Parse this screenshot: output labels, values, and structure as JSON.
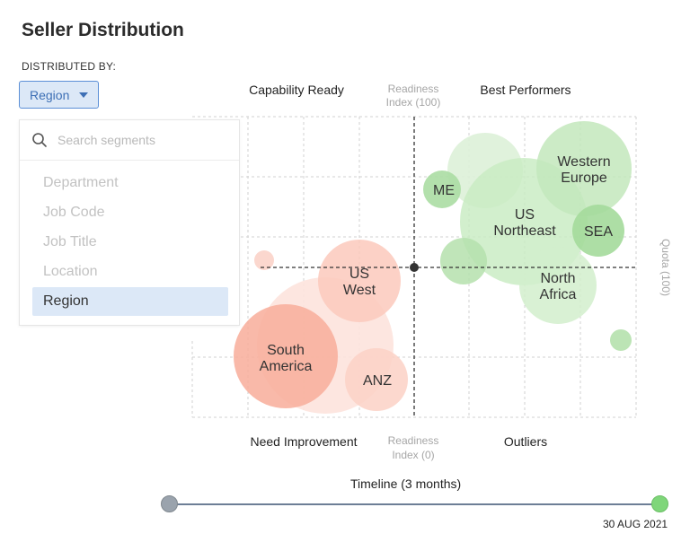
{
  "header": {
    "title": "Seller Distribution",
    "distributed_by_label": "DISTRIBUTED BY:"
  },
  "filter": {
    "selected": "Region",
    "search_placeholder": "Search segments",
    "options": [
      "Department",
      "Job Code",
      "Job Title",
      "Location",
      "Region"
    ],
    "selected_index": 4
  },
  "chart_data": {
    "type": "scatter",
    "quadrants": {
      "top_left": "Capability Ready",
      "top_right": "Best Performers",
      "bottom_left": "Need Improvement",
      "bottom_right": "Outliers"
    },
    "axis_labels": {
      "y_top": [
        "Readiness",
        "Index (100)"
      ],
      "y_bottom": [
        "Readiness",
        "Index (0)"
      ],
      "x_right": "Quota (100)"
    },
    "bubbles": [
      {
        "label": "ME",
        "group": "green"
      },
      {
        "label": "US Northeast",
        "group": "green"
      },
      {
        "label": "Western Europe",
        "group": "green"
      },
      {
        "label": "SEA",
        "group": "green"
      },
      {
        "label": "North Africa",
        "group": "green"
      },
      {
        "label": "US West",
        "group": "red"
      },
      {
        "label": "South America",
        "group": "red"
      },
      {
        "label": "ANZ",
        "group": "red"
      }
    ],
    "colors": {
      "green_light": "#ddf1d8",
      "green_mid": "#c3e8bc",
      "green_strong": "#abdda3",
      "red_light": "#fde3dd",
      "red_mid": "#fbc9bc",
      "red_strong": "#f8ad9a"
    }
  },
  "timeline": {
    "label": "Timeline (3 months)",
    "end_date": "30 AUG 2021",
    "position": 1.0
  }
}
